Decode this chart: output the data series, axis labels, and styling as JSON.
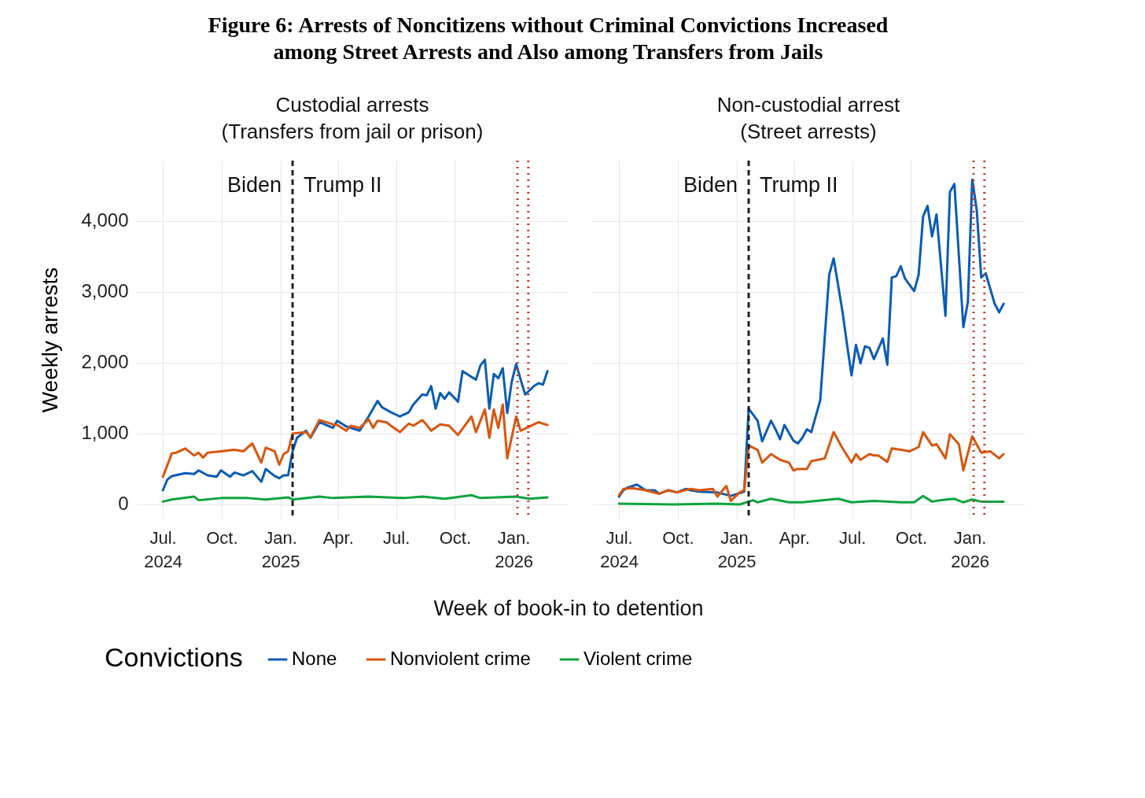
{
  "chart_data": [
    {
      "type": "line",
      "title": "Figure 6: Arrests of Noncitizens without Criminal Convictions Increased\namong Street Arrests and Also among Transfers from Jails",
      "subtitle": "Custodial arrests\n(Transfers from jail or prison)",
      "xlabel": "Week of book-in to detention",
      "ylabel": "Weekly arrests",
      "legend_title": "Convictions",
      "legend": "bottom",
      "grid": true,
      "xlim": [
        "2024-05-20",
        "2026-03-28"
      ],
      "ylim": [
        -200,
        4850
      ],
      "xticks": [
        {
          "value": "2024-07-01",
          "label": "Jul.\n2024"
        },
        {
          "value": "2024-10-01",
          "label": "Oct."
        },
        {
          "value": "2025-01-01",
          "label": "Jan.\n2025"
        },
        {
          "value": "2025-04-01",
          "label": "Apr."
        },
        {
          "value": "2025-07-01",
          "label": "Jul."
        },
        {
          "value": "2025-10-01",
          "label": "Oct."
        },
        {
          "value": "2026-01-01",
          "label": "Jan.\n2026"
        }
      ],
      "yticks": [
        0,
        {
          "value": 1000,
          "label": "1,000"
        },
        {
          "value": 2000,
          "label": "2,000"
        },
        {
          "value": 3000,
          "label": "3,000"
        },
        {
          "value": 4000,
          "label": "4,000"
        }
      ],
      "ref_lines": [
        {
          "axis": "x",
          "value": "2025-01-20",
          "color": "#222222",
          "line_style": "dashed"
        },
        {
          "axis": "x",
          "value": "2026-01-07",
          "color": "#c0392b",
          "line_style": "dotted"
        },
        {
          "axis": "x",
          "value": "2026-01-24",
          "color": "#c0392b",
          "line_style": "dotted"
        }
      ],
      "annotations": [
        "Biden",
        "Trump II"
      ],
      "series": [
        {
          "name": "None",
          "color": "#0b5cb5",
          "x": [
            "2024-07-01",
            "2024-07-08",
            "2024-07-15",
            "2024-08-05",
            "2024-08-19",
            "2024-08-26",
            "2024-09-09",
            "2024-09-23",
            "2024-09-30",
            "2024-10-14",
            "2024-10-21",
            "2024-11-04",
            "2024-11-18",
            "2024-12-02",
            "2024-12-09",
            "2024-12-23",
            "2024-12-30",
            "2025-01-06",
            "2025-01-13",
            "2025-01-20",
            "2025-01-27",
            "2025-02-10",
            "2025-02-17",
            "2025-03-03",
            "2025-03-24",
            "2025-03-31",
            "2025-04-14",
            "2025-05-05",
            "2025-05-19",
            "2025-06-02",
            "2025-06-09",
            "2025-06-23",
            "2025-07-07",
            "2025-07-21",
            "2025-07-28",
            "2025-08-11",
            "2025-08-18",
            "2025-08-25",
            "2025-09-01",
            "2025-09-08",
            "2025-09-15",
            "2025-09-22",
            "2025-10-06",
            "2025-10-13",
            "2025-10-20",
            "2025-11-03",
            "2025-11-10",
            "2025-11-17",
            "2025-11-24",
            "2025-12-01",
            "2025-12-08",
            "2025-12-15",
            "2025-12-22",
            "2025-12-29",
            "2026-01-05",
            "2026-01-12",
            "2026-01-19",
            "2026-02-02",
            "2026-02-09",
            "2026-02-16",
            "2026-02-23"
          ],
          "values": [
            200,
            350,
            400,
            440,
            430,
            480,
            410,
            390,
            480,
            390,
            450,
            410,
            470,
            320,
            500,
            400,
            370,
            410,
            410,
            750,
            940,
            1040,
            940,
            1160,
            1080,
            1180,
            1100,
            1040,
            1240,
            1460,
            1370,
            1300,
            1240,
            1300,
            1410,
            1550,
            1540,
            1670,
            1350,
            1570,
            1490,
            1580,
            1450,
            1880,
            1840,
            1760,
            1960,
            2040,
            1350,
            1840,
            1780,
            1920,
            1290,
            1730,
            1980,
            1760,
            1550,
            1670,
            1710,
            1690,
            1880
          ]
        },
        {
          "name": "Nonviolent crime",
          "color": "#d9550f",
          "x": [
            "2024-07-01",
            "2024-07-15",
            "2024-07-22",
            "2024-08-05",
            "2024-08-19",
            "2024-08-26",
            "2024-09-02",
            "2024-09-09",
            "2024-09-30",
            "2024-10-21",
            "2024-11-04",
            "2024-11-18",
            "2024-12-02",
            "2024-12-09",
            "2024-12-23",
            "2024-12-30",
            "2025-01-06",
            "2025-01-13",
            "2025-01-20",
            "2025-02-10",
            "2025-02-17",
            "2025-03-03",
            "2025-03-24",
            "2025-03-31",
            "2025-04-14",
            "2025-04-21",
            "2025-05-05",
            "2025-05-19",
            "2025-05-26",
            "2025-06-02",
            "2025-06-16",
            "2025-06-23",
            "2025-07-07",
            "2025-07-21",
            "2025-07-28",
            "2025-08-11",
            "2025-08-18",
            "2025-08-25",
            "2025-09-08",
            "2025-09-22",
            "2025-10-06",
            "2025-10-27",
            "2025-11-03",
            "2025-11-17",
            "2025-11-24",
            "2025-12-01",
            "2025-12-08",
            "2025-12-15",
            "2025-12-22",
            "2026-01-05",
            "2026-01-12",
            "2026-01-26",
            "2026-02-09",
            "2026-02-23"
          ],
          "values": [
            390,
            720,
            730,
            790,
            690,
            730,
            660,
            730,
            750,
            770,
            750,
            860,
            590,
            800,
            750,
            560,
            710,
            750,
            1000,
            1020,
            950,
            1190,
            1130,
            1120,
            1040,
            1110,
            1080,
            1200,
            1080,
            1180,
            1160,
            1110,
            1020,
            1140,
            1110,
            1190,
            1120,
            1040,
            1130,
            1110,
            980,
            1240,
            1020,
            1340,
            940,
            1340,
            1080,
            1410,
            650,
            1240,
            1040,
            1100,
            1160,
            1120
          ]
        },
        {
          "name": "Violent crime",
          "color": "#0fa33f",
          "x": [
            "2024-07-01",
            "2024-07-15",
            "2024-08-19",
            "2024-08-26",
            "2024-09-30",
            "2024-11-11",
            "2024-12-09",
            "2025-01-13",
            "2025-01-20",
            "2025-03-03",
            "2025-03-24",
            "2025-05-19",
            "2025-07-14",
            "2025-08-11",
            "2025-09-15",
            "2025-10-27",
            "2025-11-10",
            "2026-01-05",
            "2026-01-26",
            "2026-02-23"
          ],
          "values": [
            40,
            70,
            110,
            60,
            90,
            90,
            70,
            100,
            70,
            110,
            90,
            110,
            90,
            110,
            80,
            130,
            90,
            110,
            80,
            100
          ]
        }
      ]
    },
    {
      "type": "line",
      "subtitle": "Non-custodial arrest\n(Street arrests)",
      "legend": "bottom",
      "grid": true,
      "tick_labels": "x",
      "xlim": [
        "2024-05-20",
        "2026-03-28"
      ],
      "ylim": [
        -200,
        4850
      ],
      "xticks": [
        {
          "value": "2024-07-01",
          "label": "Jul.\n2024"
        },
        {
          "value": "2024-10-01",
          "label": "Oct."
        },
        {
          "value": "2025-01-01",
          "label": "Jan.\n2025"
        },
        {
          "value": "2025-04-01",
          "label": "Apr."
        },
        {
          "value": "2025-07-01",
          "label": "Jul."
        },
        {
          "value": "2025-10-01",
          "label": "Oct."
        },
        {
          "value": "2026-01-01",
          "label": "Jan.\n2026"
        }
      ],
      "yticks": [
        0,
        1000,
        2000,
        3000,
        4000
      ],
      "ref_lines": [
        {
          "axis": "x",
          "value": "2025-01-20",
          "color": "#222222",
          "line_style": "dashed"
        },
        {
          "axis": "x",
          "value": "2026-01-07",
          "color": "#c0392b",
          "line_style": "dotted"
        },
        {
          "axis": "x",
          "value": "2026-01-24",
          "color": "#c0392b",
          "line_style": "dotted"
        }
      ],
      "annotations": [
        "Biden",
        "Trump II"
      ],
      "series": [
        {
          "name": "None",
          "color": "#0b5cb5",
          "x": [
            "2024-07-01",
            "2024-07-08",
            "2024-07-15",
            "2024-07-29",
            "2024-08-12",
            "2024-08-26",
            "2024-09-02",
            "2024-09-16",
            "2024-09-30",
            "2024-10-14",
            "2024-10-21",
            "2024-11-04",
            "2024-12-02",
            "2024-12-23",
            "2025-01-06",
            "2025-01-13",
            "2025-01-20",
            "2025-02-03",
            "2025-02-10",
            "2025-02-24",
            "2025-03-03",
            "2025-03-10",
            "2025-03-17",
            "2025-03-31",
            "2025-04-07",
            "2025-04-14",
            "2025-04-21",
            "2025-04-28",
            "2025-05-12",
            "2025-05-26",
            "2025-06-02",
            "2025-06-16",
            "2025-06-23",
            "2025-06-30",
            "2025-07-07",
            "2025-07-14",
            "2025-07-21",
            "2025-07-28",
            "2025-08-04",
            "2025-08-18",
            "2025-08-25",
            "2025-09-01",
            "2025-09-08",
            "2025-09-15",
            "2025-09-22",
            "2025-10-06",
            "2025-10-13",
            "2025-10-20",
            "2025-10-27",
            "2025-11-03",
            "2025-11-10",
            "2025-11-24",
            "2025-12-01",
            "2025-12-08",
            "2025-12-22",
            "2025-12-29",
            "2026-01-05",
            "2026-01-12",
            "2026-01-19",
            "2026-01-26",
            "2026-02-09",
            "2026-02-16",
            "2026-02-23"
          ],
          "values": [
            110,
            200,
            240,
            280,
            200,
            200,
            150,
            200,
            170,
            220,
            200,
            180,
            170,
            120,
            160,
            180,
            1350,
            1180,
            890,
            1180,
            1060,
            920,
            1120,
            900,
            860,
            940,
            1060,
            1020,
            1470,
            3240,
            3470,
            2710,
            2250,
            1820,
            2250,
            1990,
            2230,
            2210,
            2050,
            2340,
            1970,
            3200,
            3220,
            3360,
            3180,
            3010,
            3240,
            4060,
            4210,
            3780,
            4090,
            2660,
            4410,
            4520,
            2500,
            2850,
            4580,
            4150,
            3200,
            3260,
            2830,
            2710,
            2830
          ]
        },
        {
          "name": "Nonviolent crime",
          "color": "#d9550f",
          "x": [
            "2024-07-01",
            "2024-07-08",
            "2024-07-22",
            "2024-08-12",
            "2024-09-02",
            "2024-09-16",
            "2024-09-30",
            "2024-10-21",
            "2024-11-04",
            "2024-11-25",
            "2024-12-02",
            "2024-12-16",
            "2024-12-23",
            "2025-01-06",
            "2025-01-13",
            "2025-01-20",
            "2025-02-03",
            "2025-02-10",
            "2025-02-24",
            "2025-03-10",
            "2025-03-24",
            "2025-03-31",
            "2025-04-07",
            "2025-04-21",
            "2025-04-28",
            "2025-05-19",
            "2025-06-02",
            "2025-06-16",
            "2025-06-30",
            "2025-07-07",
            "2025-07-14",
            "2025-07-28",
            "2025-08-04",
            "2025-08-11",
            "2025-08-25",
            "2025-09-01",
            "2025-09-15",
            "2025-09-29",
            "2025-10-13",
            "2025-10-20",
            "2025-11-03",
            "2025-11-10",
            "2025-11-24",
            "2025-12-01",
            "2025-12-15",
            "2025-12-22",
            "2026-01-05",
            "2026-01-19",
            "2026-02-02",
            "2026-02-16",
            "2026-02-23"
          ],
          "values": [
            130,
            220,
            230,
            200,
            150,
            200,
            170,
            220,
            200,
            220,
            110,
            260,
            50,
            170,
            200,
            830,
            770,
            590,
            710,
            630,
            590,
            480,
            500,
            500,
            610,
            650,
            1020,
            790,
            590,
            710,
            630,
            710,
            690,
            690,
            600,
            790,
            770,
            750,
            810,
            1020,
            830,
            850,
            650,
            990,
            850,
            480,
            960,
            730,
            750,
            650,
            710
          ]
        },
        {
          "name": "Violent crime",
          "color": "#0fa33f",
          "x": [
            "2024-07-01",
            "2024-09-23",
            "2024-12-02",
            "2025-01-06",
            "2025-01-27",
            "2025-02-03",
            "2025-02-24",
            "2025-03-24",
            "2025-04-14",
            "2025-06-09",
            "2025-06-30",
            "2025-08-04",
            "2025-09-15",
            "2025-10-06",
            "2025-10-20",
            "2025-11-03",
            "2025-11-17",
            "2025-12-08",
            "2025-12-22",
            "2026-01-05",
            "2026-01-19",
            "2026-02-23"
          ],
          "values": [
            10,
            0,
            10,
            0,
            60,
            30,
            80,
            30,
            30,
            80,
            30,
            50,
            30,
            30,
            120,
            40,
            60,
            80,
            30,
            70,
            40,
            40
          ]
        }
      ]
    }
  ]
}
